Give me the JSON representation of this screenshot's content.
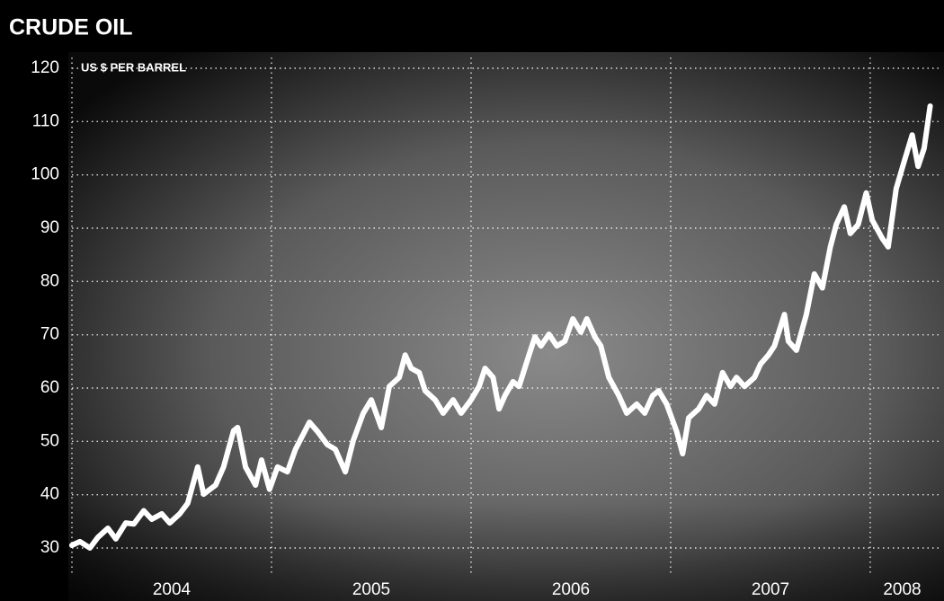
{
  "chart_data": {
    "type": "line",
    "title": "CRUDE OIL",
    "y_label": "US $ PER BARREL",
    "color": "#ffffff",
    "grid": true,
    "ylim": [
      30,
      120
    ],
    "yticks": [
      30,
      40,
      50,
      60,
      70,
      80,
      90,
      100,
      110,
      120
    ],
    "xlim": [
      2004,
      2008.32
    ],
    "xticks": [
      2004,
      2005,
      2006,
      2007,
      2008
    ],
    "x": [
      2004.0,
      2004.04,
      2004.09,
      2004.13,
      2004.18,
      2004.22,
      2004.27,
      2004.31,
      2004.36,
      2004.4,
      2004.45,
      2004.49,
      2004.54,
      2004.58,
      2004.63,
      2004.66,
      2004.72,
      2004.76,
      2004.81,
      2004.83,
      2004.87,
      2004.92,
      2004.95,
      2004.99,
      2005.03,
      2005.08,
      2005.12,
      2005.19,
      2005.23,
      2005.28,
      2005.32,
      2005.37,
      2005.41,
      2005.46,
      2005.5,
      2005.55,
      2005.59,
      2005.64,
      2005.67,
      2005.7,
      2005.74,
      2005.77,
      2005.82,
      2005.86,
      2005.91,
      2005.95,
      2006.0,
      2006.04,
      2006.07,
      2006.11,
      2006.14,
      2006.17,
      2006.21,
      2006.24,
      2006.29,
      2006.32,
      2006.35,
      2006.39,
      2006.43,
      2006.47,
      2006.51,
      2006.55,
      2006.58,
      2006.62,
      2006.65,
      2006.69,
      2006.74,
      2006.78,
      2006.83,
      2006.87,
      2006.91,
      2006.94,
      2006.98,
      2007.03,
      2007.06,
      2007.09,
      2007.14,
      2007.18,
      2007.22,
      2007.26,
      2007.3,
      2007.33,
      2007.37,
      2007.42,
      2007.45,
      2007.49,
      2007.52,
      2007.57,
      2007.59,
      2007.63,
      2007.68,
      2007.72,
      2007.76,
      2007.8,
      2007.83,
      2007.87,
      2007.9,
      2007.94,
      2007.98,
      2008.01,
      2008.06,
      2008.09,
      2008.13,
      2008.17,
      2008.21,
      2008.24,
      2008.27,
      2008.3
    ],
    "values": [
      30.5,
      31.2,
      30.0,
      32.0,
      33.7,
      31.7,
      34.7,
      34.5,
      37.0,
      35.4,
      36.4,
      34.7,
      36.4,
      38.4,
      45.2,
      40.1,
      41.8,
      45.2,
      52.0,
      52.6,
      45.2,
      41.8,
      46.5,
      41.0,
      45.2,
      44.3,
      48.5,
      53.6,
      51.9,
      49.4,
      48.5,
      44.3,
      50.2,
      55.3,
      57.8,
      52.6,
      60.3,
      62.0,
      66.2,
      63.7,
      62.9,
      59.5,
      57.8,
      55.3,
      57.8,
      55.3,
      57.8,
      60.3,
      63.7,
      62.0,
      56.1,
      58.6,
      61.2,
      60.3,
      66.2,
      69.6,
      67.9,
      70.1,
      67.9,
      68.8,
      73.0,
      70.5,
      73.0,
      69.6,
      67.9,
      62.0,
      58.6,
      55.3,
      57.0,
      55.3,
      58.6,
      59.5,
      57.0,
      51.9,
      47.7,
      54.4,
      56.1,
      58.6,
      57.0,
      62.9,
      60.3,
      62.0,
      60.3,
      62.0,
      64.5,
      66.2,
      67.9,
      73.8,
      68.8,
      67.1,
      73.8,
      81.4,
      78.8,
      86.5,
      90.7,
      94.0,
      89.0,
      90.7,
      96.6,
      91.5,
      88.1,
      86.5,
      97.4,
      102.5,
      107.5,
      101.6,
      105.0,
      112.9
    ]
  }
}
